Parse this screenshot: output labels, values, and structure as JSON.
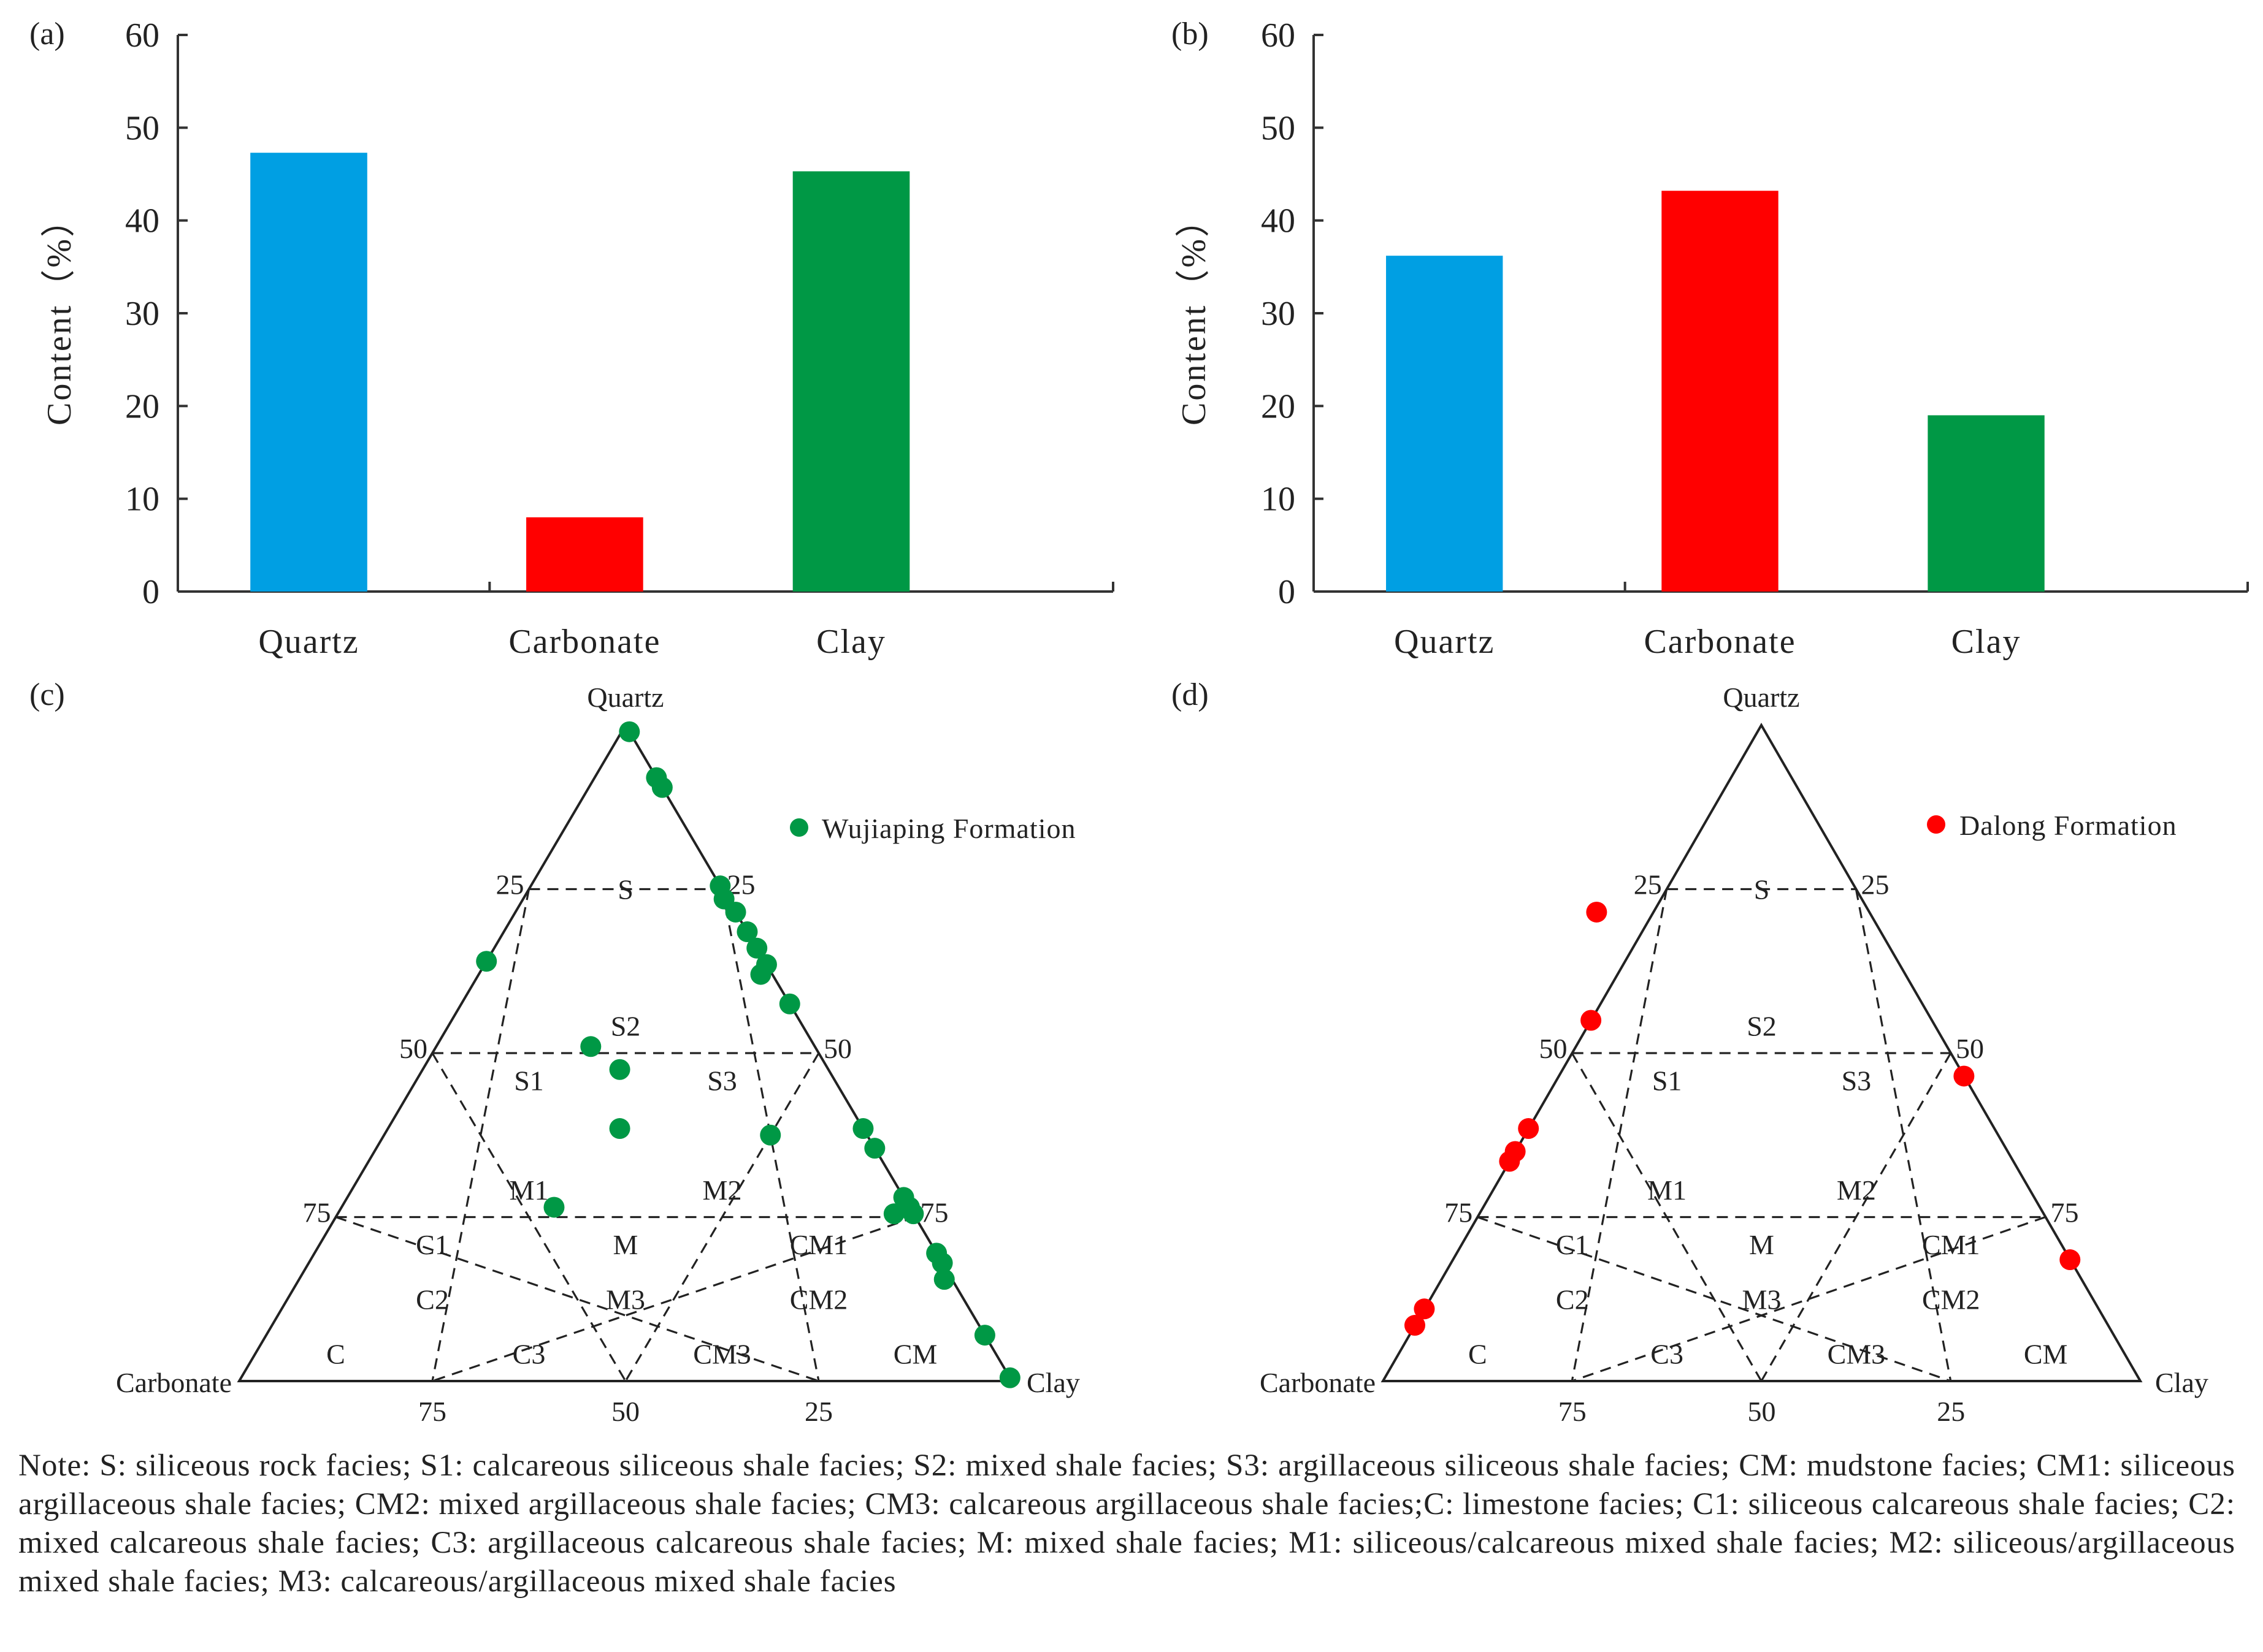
{
  "panels": {
    "a": {
      "label": "(a)"
    },
    "b": {
      "label": "(b)"
    },
    "c": {
      "label": "(c)"
    },
    "d": {
      "label": "(d)"
    }
  },
  "chart_data": [
    {
      "id": "a",
      "type": "bar",
      "categories": [
        "Quartz",
        "Carbonate",
        "Clay"
      ],
      "values": [
        47.3,
        8.0,
        45.3
      ],
      "colors": [
        "#009fe3",
        "#ff0000",
        "#009845"
      ],
      "ylabel": "Content（%）",
      "ylim": [
        0,
        60
      ],
      "yticks": [
        0,
        10,
        20,
        30,
        40,
        50,
        60
      ]
    },
    {
      "id": "b",
      "type": "bar",
      "categories": [
        "Quartz",
        "Carbonate",
        "Clay"
      ],
      "values": [
        36.2,
        43.2,
        19.0
      ],
      "colors": [
        "#009fe3",
        "#ff0000",
        "#009845"
      ],
      "ylabel": "Content（%）",
      "ylim": [
        0,
        60
      ],
      "yticks": [
        0,
        10,
        20,
        30,
        40,
        50,
        60
      ]
    },
    {
      "id": "c",
      "type": "scatter",
      "ternary": true,
      "vertices": {
        "top": "Quartz",
        "left": "Carbonate",
        "right": "Clay"
      },
      "left_edge_ticks": [
        "25",
        "50",
        "75"
      ],
      "right_edge_ticks": [
        "25",
        "50",
        "75"
      ],
      "bottom_ticks": [
        "75",
        "50",
        "25"
      ],
      "regions": [
        "S",
        "S1",
        "S2",
        "S3",
        "M1",
        "M",
        "M2",
        "C1",
        "CM1",
        "C2",
        "C3",
        "M3",
        "CM2",
        "CM3",
        "C",
        "CM"
      ],
      "legend": "Wujiaping Formation",
      "color": "#009845",
      "points": [
        {
          "quartz": 99,
          "carbonate": 0,
          "clay": 1
        },
        {
          "quartz": 92,
          "carbonate": 0,
          "clay": 8
        },
        {
          "quartz": 90.5,
          "carbonate": 0,
          "clay": 9.5
        },
        {
          "quartz": 75.5,
          "carbonate": 0,
          "clay": 24.5
        },
        {
          "quartz": 73.5,
          "carbonate": 0.5,
          "clay": 26
        },
        {
          "quartz": 71.5,
          "carbonate": 0,
          "clay": 28.5
        },
        {
          "quartz": 68.5,
          "carbonate": 0,
          "clay": 31.5
        },
        {
          "quartz": 66,
          "carbonate": 0,
          "clay": 34
        },
        {
          "quartz": 63.5,
          "carbonate": 0,
          "clay": 36.5
        },
        {
          "quartz": 62,
          "carbonate": 1.5,
          "clay": 36.5
        },
        {
          "quartz": 57.5,
          "carbonate": 0,
          "clay": 42.5
        },
        {
          "quartz": 64,
          "carbonate": 36,
          "clay": 0
        },
        {
          "quartz": 51,
          "carbonate": 29,
          "clay": 20
        },
        {
          "quartz": 47.5,
          "carbonate": 27,
          "clay": 25.5
        },
        {
          "quartz": 38.5,
          "carbonate": 31.5,
          "clay": 30
        },
        {
          "quartz": 37.5,
          "carbonate": 12.5,
          "clay": 50
        },
        {
          "quartz": 38.5,
          "carbonate": 0,
          "clay": 61.5
        },
        {
          "quartz": 35.5,
          "carbonate": 0,
          "clay": 64.5
        },
        {
          "quartz": 26.5,
          "carbonate": 46,
          "clay": 27.5
        },
        {
          "quartz": 28,
          "carbonate": 0,
          "clay": 72
        },
        {
          "quartz": 26.5,
          "carbonate": 0,
          "clay": 73.5
        },
        {
          "quartz": 25.5,
          "carbonate": 0,
          "clay": 74.5
        },
        {
          "quartz": 25.5,
          "carbonate": 2.5,
          "clay": 72
        },
        {
          "quartz": 19.5,
          "carbonate": 0,
          "clay": 80.5
        },
        {
          "quartz": 18,
          "carbonate": 0,
          "clay": 82
        },
        {
          "quartz": 15.5,
          "carbonate": 1,
          "clay": 83.5
        },
        {
          "quartz": 7,
          "carbonate": 0,
          "clay": 93
        },
        {
          "quartz": 0.5,
          "carbonate": 0,
          "clay": 99.5
        }
      ]
    },
    {
      "id": "d",
      "type": "scatter",
      "ternary": true,
      "vertices": {
        "top": "Quartz",
        "left": "Carbonate",
        "right": "Clay"
      },
      "left_edge_ticks": [
        "25",
        "50",
        "75"
      ],
      "right_edge_ticks": [
        "25",
        "50",
        "75"
      ],
      "bottom_ticks": [
        "75",
        "50",
        "25"
      ],
      "regions": [
        "S",
        "S1",
        "S2",
        "S3",
        "M1",
        "M",
        "M2",
        "C1",
        "CM1",
        "C2",
        "C3",
        "M3",
        "CM2",
        "CM3",
        "C",
        "CM"
      ],
      "legend": "Dalong Formation",
      "color": "#ff0000",
      "points": [
        {
          "quartz": 71.5,
          "carbonate": 36,
          "clay": -7.5
        },
        {
          "quartz": 55,
          "carbonate": 45,
          "clay": 0
        },
        {
          "quartz": 38.5,
          "carbonate": 61.5,
          "clay": 0
        },
        {
          "quartz": 35,
          "carbonate": 65,
          "clay": 0
        },
        {
          "quartz": 33.5,
          "carbonate": 66.5,
          "clay": 0
        },
        {
          "quartz": 46.5,
          "carbonate": 0,
          "clay": 53.5
        },
        {
          "quartz": 18.5,
          "carbonate": 0,
          "clay": 81.5
        },
        {
          "quartz": 11,
          "carbonate": 89,
          "clay": 0
        },
        {
          "quartz": 8.5,
          "carbonate": 91.5,
          "clay": 0
        }
      ]
    }
  ],
  "note": "Note: S: siliceous rock facies; S1: calcareous siliceous shale facies; S2: mixed shale facies; S3: argillaceous siliceous shale facies; CM: mudstone facies; CM1: siliceous argillaceous shale facies; CM2: mixed argillaceous shale facies; CM3: calcareous argillaceous shale facies;C: limestone facies; C1: siliceous calcareous shale facies; C2: mixed calcareous shale facies; C3: argillaceous calcareous shale facies; M: mixed shale facies; M1: siliceous/calcareous mixed shale facies; M2: siliceous/argillaceous mixed shale facies; M3: calcareous/argillaceous mixed shale facies"
}
